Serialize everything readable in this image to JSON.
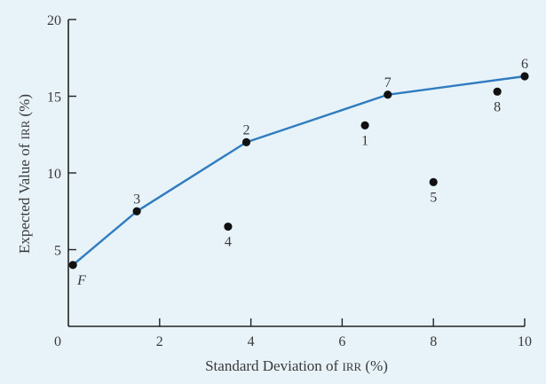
{
  "chart_data": {
    "type": "scatter",
    "title": "",
    "xlabel": {
      "before": "Standard Deviation of ",
      "smallcaps": "IRR",
      "after": " (%)"
    },
    "ylabel": {
      "before": "Expected Value of ",
      "smallcaps": "IRR",
      "after": " (%)"
    },
    "xlim": [
      0,
      10
    ],
    "ylim": [
      0,
      20
    ],
    "xticks": [
      0,
      2,
      4,
      6,
      8,
      10
    ],
    "yticks": [
      5,
      10,
      15,
      20
    ],
    "grid": false,
    "legend": "none",
    "line_color": "#2f7cc0",
    "point_color": "#111111",
    "points": [
      {
        "label": "F",
        "x": 0.1,
        "y": 4.0,
        "italic": true,
        "label_pos": "below-right"
      },
      {
        "label": "1",
        "x": 6.5,
        "y": 13.1,
        "label_pos": "below"
      },
      {
        "label": "2",
        "x": 3.9,
        "y": 12.0,
        "label_pos": "above"
      },
      {
        "label": "3",
        "x": 1.5,
        "y": 7.5,
        "label_pos": "above"
      },
      {
        "label": "4",
        "x": 3.5,
        "y": 6.5,
        "label_pos": "below"
      },
      {
        "label": "5",
        "x": 8.0,
        "y": 9.4,
        "label_pos": "below"
      },
      {
        "label": "6",
        "x": 10.0,
        "y": 16.3,
        "label_pos": "above"
      },
      {
        "label": "7",
        "x": 7.0,
        "y": 15.1,
        "label_pos": "above"
      },
      {
        "label": "8",
        "x": 9.4,
        "y": 15.3,
        "label_pos": "below"
      }
    ],
    "frontier": [
      "F",
      "3",
      "2",
      "7",
      "6"
    ]
  }
}
